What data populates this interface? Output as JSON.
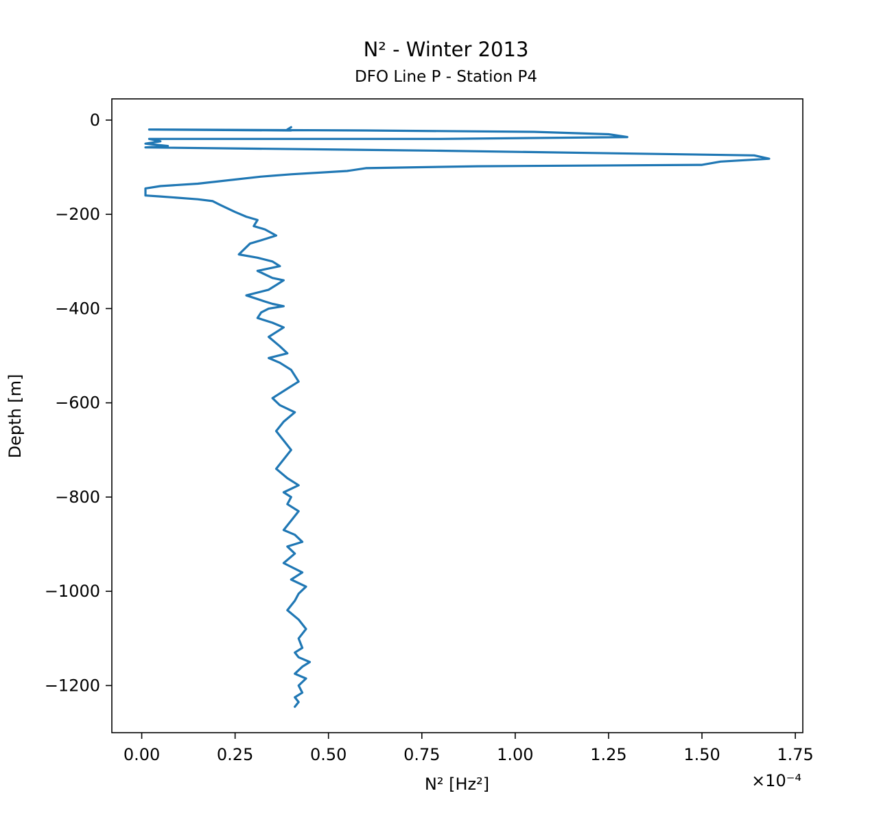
{
  "chart_data": {
    "type": "line",
    "title": "N² - Winter 2013",
    "subtitle": "DFO Line P - Station P4",
    "xlabel": "N² [Hz²]",
    "x_offset_label": "×10⁻⁴",
    "ylabel": "Depth [m]",
    "x_scale": 0.0001,
    "xlim": [
      -0.08,
      1.77
    ],
    "ylim": [
      -1300,
      45
    ],
    "x_ticks": [
      0.0,
      0.25,
      0.5,
      0.75,
      1.0,
      1.25,
      1.5,
      1.75
    ],
    "x_tick_labels": [
      "0.00",
      "0.25",
      "0.50",
      "0.75",
      "1.00",
      "1.25",
      "1.50",
      "1.75"
    ],
    "y_ticks": [
      0,
      -200,
      -400,
      -600,
      -800,
      -1000,
      -1200
    ],
    "y_tick_labels": [
      "0",
      "−200",
      "−400",
      "−600",
      "−800",
      "−1000",
      "−1200"
    ],
    "grid": false,
    "series": [
      {
        "color": "#1f77b4",
        "x": [
          0.4,
          0.39,
          0.4,
          0.02,
          0.6,
          1.05,
          1.25,
          1.3,
          0.8,
          0.02,
          0.05,
          0.01,
          0.07,
          0.01,
          0.8,
          1.64,
          1.68,
          1.55,
          1.5,
          0.9,
          0.6,
          0.55,
          0.4,
          0.32,
          0.15,
          0.05,
          0.01,
          0.01,
          0.05,
          0.15,
          0.19,
          0.21,
          0.25,
          0.28,
          0.31,
          0.3,
          0.33,
          0.36,
          0.32,
          0.29,
          0.26,
          0.31,
          0.35,
          0.37,
          0.31,
          0.35,
          0.38,
          0.36,
          0.34,
          0.28,
          0.33,
          0.35,
          0.38,
          0.34,
          0.32,
          0.31,
          0.35,
          0.38,
          0.34,
          0.37,
          0.39,
          0.34,
          0.37,
          0.4,
          0.42,
          0.39,
          0.35,
          0.37,
          0.41,
          0.38,
          0.36,
          0.38,
          0.4,
          0.38,
          0.36,
          0.39,
          0.42,
          0.38,
          0.4,
          0.39,
          0.42,
          0.4,
          0.38,
          0.41,
          0.43,
          0.39,
          0.41,
          0.38,
          0.43,
          0.4,
          0.44,
          0.42,
          0.41,
          0.39,
          0.42,
          0.44,
          0.42,
          0.43,
          0.41,
          0.42,
          0.45,
          0.43,
          0.41,
          0.44,
          0.42,
          0.43,
          0.41,
          0.42,
          0.41
        ],
        "y": [
          -15,
          -20,
          -22,
          -20,
          -22,
          -25,
          -30,
          -36,
          -40,
          -40,
          -45,
          -50,
          -55,
          -58,
          -65,
          -75,
          -82,
          -88,
          -95,
          -98,
          -102,
          -108,
          -115,
          -120,
          -135,
          -140,
          -145,
          -160,
          -162,
          -168,
          -172,
          -180,
          -195,
          -205,
          -212,
          -225,
          -232,
          -245,
          -255,
          -262,
          -285,
          -292,
          -300,
          -310,
          -320,
          -335,
          -340,
          -350,
          -360,
          -372,
          -385,
          -390,
          -395,
          -400,
          -408,
          -420,
          -430,
          -440,
          -460,
          -480,
          -495,
          -505,
          -515,
          -530,
          -555,
          -570,
          -590,
          -605,
          -620,
          -640,
          -660,
          -680,
          -700,
          -720,
          -740,
          -760,
          -775,
          -790,
          -800,
          -815,
          -830,
          -850,
          -870,
          -880,
          -895,
          -905,
          -920,
          -940,
          -960,
          -975,
          -990,
          -1005,
          -1020,
          -1040,
          -1060,
          -1080,
          -1100,
          -1120,
          -1130,
          -1140,
          -1150,
          -1160,
          -1175,
          -1185,
          -1200,
          -1215,
          -1225,
          -1235,
          -1245
        ]
      }
    ]
  }
}
